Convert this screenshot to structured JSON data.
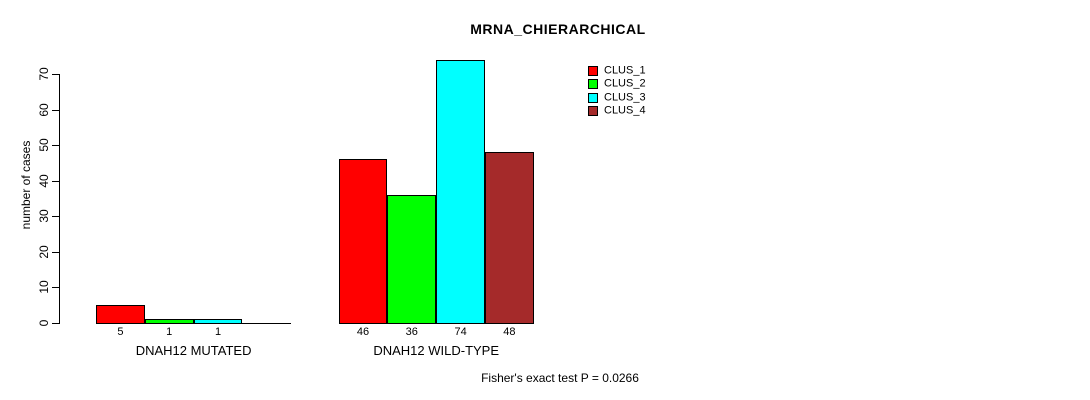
{
  "title": "MRNA_CHIERARCHICAL",
  "footer": "Fisher's exact test P = 0.0266",
  "chart_data": {
    "type": "bar",
    "title": "MRNA_CHIERARCHICAL",
    "xlabel": "",
    "ylabel": "number of cases",
    "ylim": [
      0,
      70
    ],
    "yticks": [
      0,
      10,
      20,
      30,
      40,
      50,
      60,
      70
    ],
    "grid": false,
    "legend_position": "top-right",
    "categories": [
      "DNAH12 MUTATED",
      "DNAH12 WILD-TYPE"
    ],
    "series": [
      {
        "name": "CLUS_1",
        "color": "#ff0000",
        "values": [
          5,
          46
        ]
      },
      {
        "name": "CLUS_2",
        "color": "#00ff00",
        "values": [
          1,
          36
        ]
      },
      {
        "name": "CLUS_3",
        "color": "#00ffff",
        "values": [
          1,
          74
        ]
      },
      {
        "name": "CLUS_4",
        "color": "#a52a2a",
        "values": [
          0,
          48
        ]
      }
    ],
    "bar_value_labels": [
      [
        "5",
        "1",
        "1",
        ""
      ],
      [
        "46",
        "36",
        "74",
        "48"
      ]
    ],
    "annotation": "Fisher's exact test P = 0.0266"
  }
}
